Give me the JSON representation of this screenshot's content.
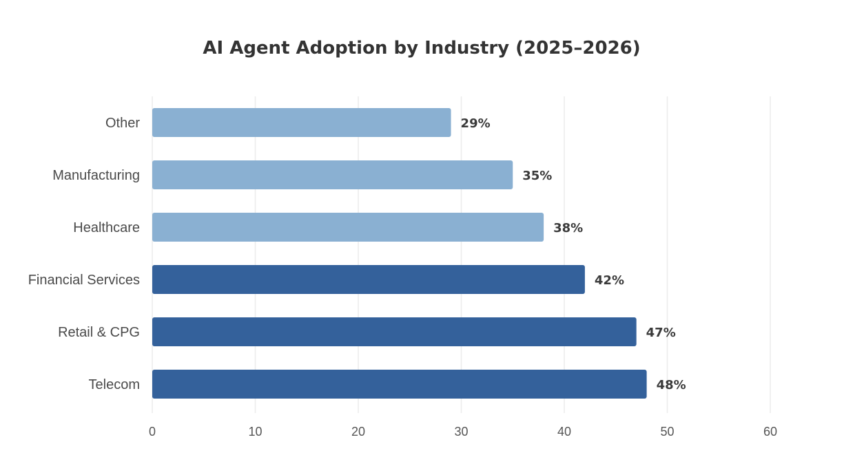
{
  "chart_data": {
    "type": "bar",
    "orientation": "horizontal",
    "title": "AI Agent Adoption by Industry (2025–2026)",
    "xlabel": "",
    "ylabel": "",
    "xlim": [
      0,
      60
    ],
    "x_ticks": [
      "0",
      "10",
      "20",
      "30",
      "40",
      "50",
      "60"
    ],
    "grid": true,
    "categories": [
      "Other",
      "Manufacturing",
      "Healthcare",
      "Financial Services",
      "Retail & CPG",
      "Telecom"
    ],
    "values": [
      29,
      35,
      38,
      42,
      47,
      48
    ],
    "data_labels": [
      "29%",
      "35%",
      "38%",
      "42%",
      "47%",
      "48%"
    ],
    "highlight": [
      false,
      false,
      false,
      true,
      true,
      true
    ],
    "colors": {
      "highlight": "#34619b",
      "normal": "#8ab0d2"
    }
  }
}
